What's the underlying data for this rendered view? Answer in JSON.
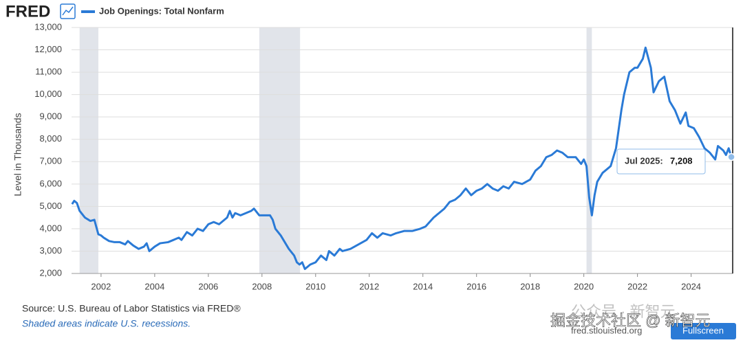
{
  "chart_data": {
    "type": "line",
    "logo": "FRED",
    "ylabel": "Level in Thousands",
    "source": "Source: U.S. Bureau of Labor Statistics via FRED®",
    "note": "Shaded areas indicate U.S. recessions.",
    "site": "fred.stlouisfed.org",
    "button": "Fullscreen",
    "watermark": [
      "公众号 · 新智元",
      "掘金技术社区 @ 新智元"
    ],
    "tooltip": {
      "date": "Jul 2025:",
      "value": 7208,
      "label": "7,208"
    },
    "x": [
      2000.92,
      2001.0,
      2001.1,
      2001.2,
      2001.4,
      2001.6,
      2001.75,
      2001.9,
      2002.0,
      2002.1,
      2002.3,
      2002.5,
      2002.7,
      2002.9,
      2003.0,
      2003.2,
      2003.4,
      2003.6,
      2003.7,
      2003.8,
      2004.0,
      2004.2,
      2004.5,
      2004.7,
      2004.9,
      2005.0,
      2005.2,
      2005.4,
      2005.6,
      2005.8,
      2006.0,
      2006.2,
      2006.4,
      2006.5,
      2006.7,
      2006.8,
      2006.9,
      2007.0,
      2007.2,
      2007.4,
      2007.6,
      2007.7,
      2007.9,
      2008.1,
      2008.3,
      2008.4,
      2008.5,
      2008.7,
      2008.9,
      2009.0,
      2009.2,
      2009.3,
      2009.4,
      2009.5,
      2009.6,
      2009.8,
      2010.0,
      2010.2,
      2010.4,
      2010.5,
      2010.7,
      2010.9,
      2011.0,
      2011.3,
      2011.6,
      2011.9,
      2012.1,
      2012.3,
      2012.5,
      2012.8,
      2013.0,
      2013.3,
      2013.6,
      2013.9,
      2014.1,
      2014.4,
      2014.6,
      2014.8,
      2015.0,
      2015.2,
      2015.4,
      2015.6,
      2015.8,
      2016.0,
      2016.2,
      2016.4,
      2016.6,
      2016.8,
      2017.0,
      2017.2,
      2017.4,
      2017.7,
      2018.0,
      2018.2,
      2018.4,
      2018.6,
      2018.8,
      2019.0,
      2019.2,
      2019.4,
      2019.7,
      2019.9,
      2020.0,
      2020.1,
      2020.2,
      2020.3,
      2020.4,
      2020.5,
      2020.7,
      2020.9,
      2021.0,
      2021.2,
      2021.4,
      2021.5,
      2021.7,
      2021.9,
      2022.0,
      2022.2,
      2022.3,
      2022.5,
      2022.6,
      2022.8,
      2023.0,
      2023.2,
      2023.4,
      2023.6,
      2023.8,
      2023.9,
      2024.1,
      2024.3,
      2024.5,
      2024.7,
      2024.9,
      2025.0,
      2025.2,
      2025.3,
      2025.4,
      2025.5
    ],
    "series": [
      {
        "name": "Job Openings: Total Nonfarm",
        "color": "#2a7ad6",
        "values": [
          5100,
          5250,
          5150,
          4800,
          4500,
          4350,
          4400,
          3750,
          3700,
          3600,
          3450,
          3400,
          3400,
          3300,
          3450,
          3250,
          3100,
          3200,
          3350,
          3000,
          3200,
          3350,
          3400,
          3500,
          3600,
          3500,
          3850,
          3700,
          4000,
          3900,
          4200,
          4300,
          4200,
          4300,
          4500,
          4800,
          4500,
          4700,
          4600,
          4700,
          4800,
          4900,
          4600,
          4600,
          4600,
          4400,
          4000,
          3700,
          3300,
          3100,
          2800,
          2500,
          2400,
          2500,
          2200,
          2400,
          2500,
          2800,
          2600,
          3000,
          2800,
          3100,
          3000,
          3100,
          3300,
          3500,
          3800,
          3600,
          3800,
          3700,
          3800,
          3900,
          3900,
          4000,
          4100,
          4500,
          4700,
          4900,
          5200,
          5300,
          5500,
          5800,
          5500,
          5700,
          5800,
          6000,
          5800,
          5700,
          5900,
          5800,
          6100,
          6000,
          6200,
          6600,
          6800,
          7200,
          7300,
          7500,
          7400,
          7200,
          7200,
          6900,
          7100,
          6800,
          5400,
          4600,
          5500,
          6100,
          6500,
          6700,
          6800,
          7600,
          9300,
          10000,
          11000,
          11200,
          11200,
          11600,
          12100,
          11200,
          10100,
          10600,
          10800,
          9700,
          9300,
          8700,
          9200,
          8600,
          8500,
          8100,
          7600,
          7400,
          7100,
          7700,
          7500,
          7300,
          7600,
          7208
        ]
      }
    ],
    "xlim": [
      2000.9,
      2025.55
    ],
    "xticks": [
      2002,
      2004,
      2006,
      2008,
      2010,
      2012,
      2014,
      2016,
      2018,
      2020,
      2022,
      2024
    ],
    "ylim": [
      2000,
      13000
    ],
    "yticks": [
      {
        "value": 2000,
        "label": "2,000"
      },
      {
        "value": 3000,
        "label": "3,000"
      },
      {
        "value": 4000,
        "label": "4,000"
      },
      {
        "value": 5000,
        "label": "5,000"
      },
      {
        "value": 6000,
        "label": "6,000"
      },
      {
        "value": 7000,
        "label": "7,000"
      },
      {
        "value": 8000,
        "label": "8,000"
      },
      {
        "value": 9000,
        "label": "9,000"
      },
      {
        "value": 10000,
        "label": "10,000"
      },
      {
        "value": 11000,
        "label": "11,000"
      },
      {
        "value": 12000,
        "label": "12,000"
      },
      {
        "value": 13000,
        "label": "13,000"
      }
    ],
    "recessions": [
      [
        2001.2,
        2001.9
      ],
      [
        2007.9,
        2009.42
      ],
      [
        2020.1,
        2020.3
      ]
    ],
    "recession_color": "#e1e4ea",
    "grid": true
  }
}
